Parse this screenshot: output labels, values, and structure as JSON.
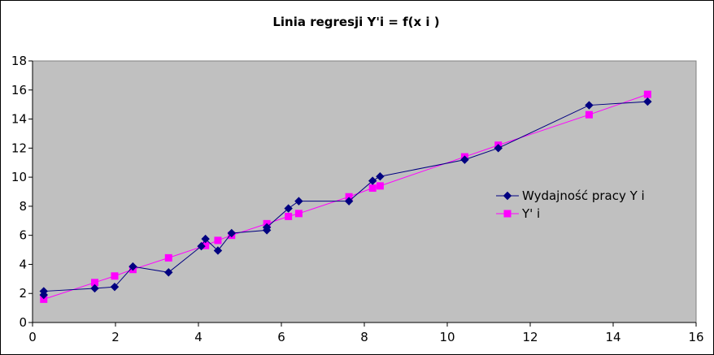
{
  "chart_data": {
    "type": "line",
    "title": "Linia regresji Y'i = f(x i )",
    "xlim": [
      0,
      16
    ],
    "ylim": [
      0,
      18
    ],
    "x_ticks": [
      0,
      2,
      4,
      6,
      8,
      10,
      12,
      14,
      16
    ],
    "y_ticks": [
      0,
      2,
      4,
      6,
      8,
      10,
      12,
      14,
      16,
      18
    ],
    "plot_background": "#c0c0c0",
    "legend_position": "right",
    "grid": false,
    "series": [
      {
        "name": "Wydajność pracy Y i",
        "color": "#000080",
        "marker": "diamond",
        "points": [
          [
            0.27,
            1.9
          ],
          [
            0.27,
            2.15
          ],
          [
            1.5,
            2.35
          ],
          [
            1.98,
            2.45
          ],
          [
            2.42,
            3.85
          ],
          [
            3.28,
            3.45
          ],
          [
            4.07,
            5.25
          ],
          [
            4.17,
            5.75
          ],
          [
            4.47,
            4.95
          ],
          [
            4.8,
            6.15
          ],
          [
            5.65,
            6.35
          ],
          [
            5.65,
            6.55
          ],
          [
            6.17,
            7.85
          ],
          [
            6.42,
            8.35
          ],
          [
            7.63,
            8.35
          ],
          [
            8.2,
            9.75
          ],
          [
            8.38,
            10.05
          ],
          [
            10.42,
            11.2
          ],
          [
            11.23,
            12.0
          ],
          [
            13.42,
            14.95
          ],
          [
            14.83,
            15.2
          ]
        ]
      },
      {
        "name": "Y' i",
        "color": "#ff00ff",
        "marker": "square",
        "points": [
          [
            0.27,
            1.6
          ],
          [
            1.5,
            2.75
          ],
          [
            1.98,
            3.2
          ],
          [
            2.42,
            3.65
          ],
          [
            3.28,
            4.45
          ],
          [
            4.17,
            5.3
          ],
          [
            4.47,
            5.65
          ],
          [
            4.8,
            6.0
          ],
          [
            5.65,
            6.8
          ],
          [
            6.17,
            7.3
          ],
          [
            6.42,
            7.5
          ],
          [
            7.63,
            8.65
          ],
          [
            8.2,
            9.25
          ],
          [
            8.38,
            9.4
          ],
          [
            10.42,
            11.4
          ],
          [
            11.23,
            12.2
          ],
          [
            13.42,
            14.3
          ],
          [
            14.83,
            15.7
          ]
        ]
      }
    ]
  }
}
